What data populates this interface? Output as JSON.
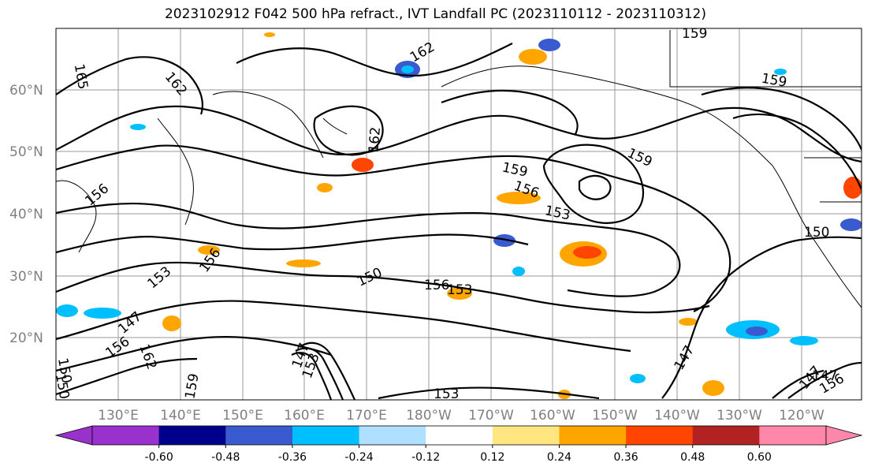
{
  "title": "2023102912 F042 500 hPa refract., IVT Landfall PC (2023110112 - 2023110312)",
  "lat_labels": [
    "60°N",
    "50°N",
    "40°N",
    "30°N",
    "20°N"
  ],
  "lon_labels": [
    "130°E",
    "140°E",
    "150°E",
    "160°E",
    "170°E",
    "180°W",
    "170°W",
    "160°W",
    "150°W",
    "140°W",
    "130°W",
    "120°W"
  ],
  "contour_labels": [
    "165",
    "162",
    "162",
    "162",
    "159",
    "159",
    "159",
    "159",
    "159",
    "156",
    "156",
    "156",
    "156",
    "156",
    "153",
    "153",
    "153",
    "153",
    "150",
    "150",
    "150",
    "147",
    "147",
    "147",
    "147",
    "147",
    "162",
    "153",
    "156",
    "150"
  ],
  "colorbar": {
    "ticks": [
      "-0.60",
      "-0.48",
      "-0.36",
      "-0.24",
      "-0.12",
      "0.12",
      "0.24",
      "0.36",
      "0.48",
      "0.60"
    ],
    "colors": [
      "#9932cc",
      "#00008b",
      "#3a5bcf",
      "#00bfff",
      "#b0e0ff",
      "#ffffff",
      "#ffe680",
      "#ffa500",
      "#ff4500",
      "#b22222",
      "#ff88aa"
    ]
  }
}
